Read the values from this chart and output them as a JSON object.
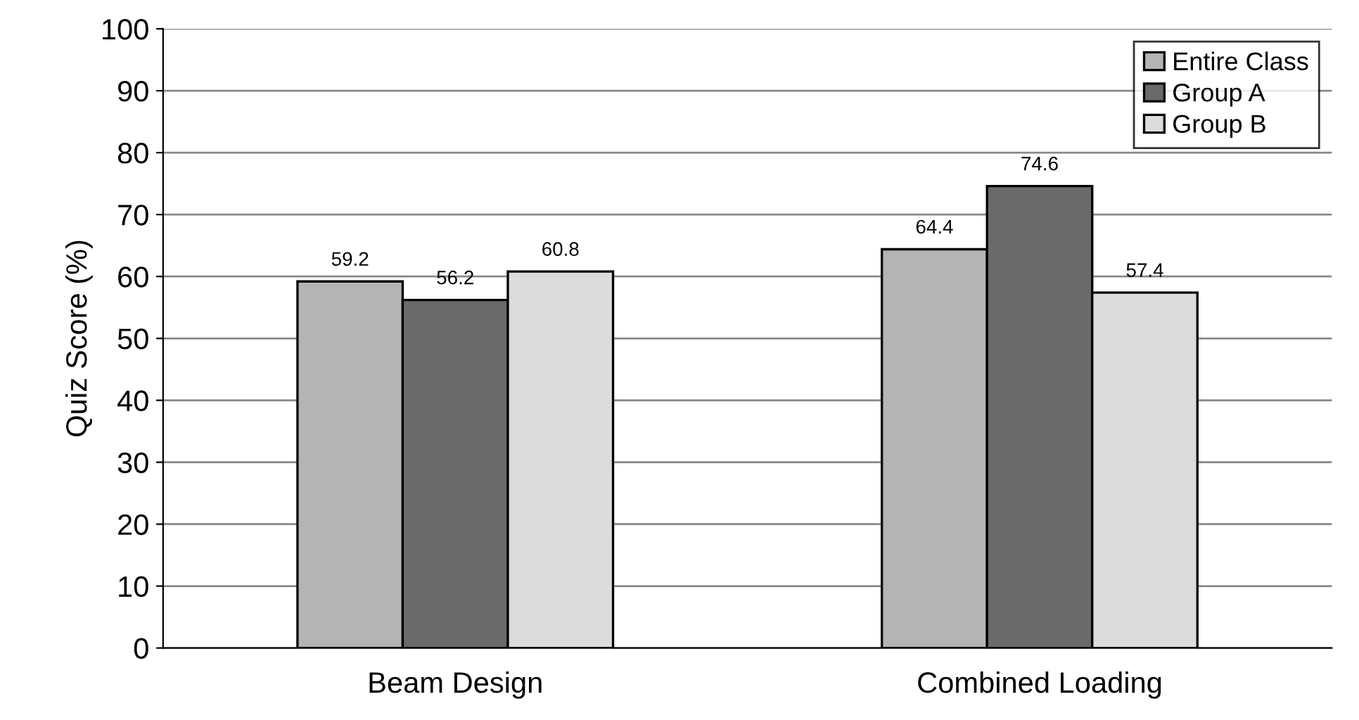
{
  "chart_data": {
    "type": "bar",
    "ylabel": "Quiz Score (%)",
    "categories": [
      "Beam Design",
      "Combined Loading"
    ],
    "series": [
      {
        "name": "Entire Class",
        "color": "#b4b4b4",
        "values": [
          59.2,
          64.4
        ]
      },
      {
        "name": "Group A",
        "color": "#6a6a6a",
        "values": [
          56.2,
          74.6
        ]
      },
      {
        "name": "Group B",
        "color": "#dcdcdc",
        "values": [
          60.8,
          57.4
        ]
      }
    ],
    "ylim": [
      0,
      100
    ],
    "yticks": [
      0,
      10,
      20,
      30,
      40,
      50,
      60,
      70,
      80,
      90,
      100
    ],
    "grid": "y",
    "legend": "top right",
    "data_labels": true
  }
}
